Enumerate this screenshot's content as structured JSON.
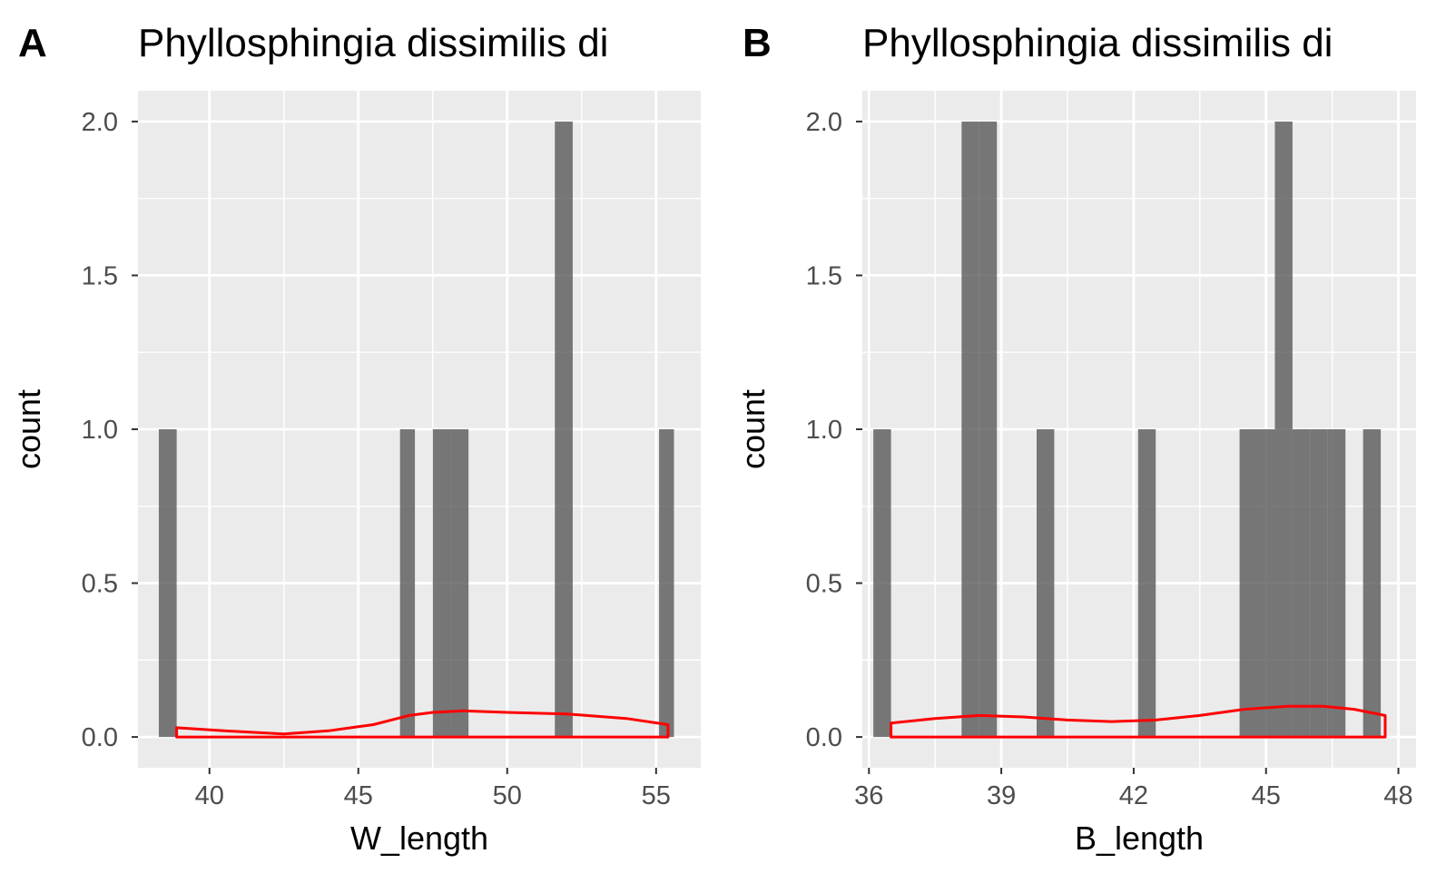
{
  "chart_data": [
    {
      "panel_tag": "A",
      "type": "bar",
      "title": "Phyllosphingia dissimilis di",
      "xlabel": "W_length",
      "ylabel": "count",
      "xlim": [
        37.6,
        56.5
      ],
      "ylim": [
        -0.1,
        2.1
      ],
      "xticks": [
        40,
        45,
        50,
        55
      ],
      "xtick_labels": [
        "40",
        "45",
        "50",
        "55"
      ],
      "yticks": [
        0,
        0.5,
        1,
        1.5,
        2
      ],
      "ytick_labels": [
        "0.0",
        "0.5",
        "1.0",
        "1.5",
        "2.0"
      ],
      "grid": true,
      "bins": [
        {
          "x0": 38.3,
          "x1": 38.9,
          "count": 1
        },
        {
          "x0": 46.4,
          "x1": 46.9,
          "count": 1
        },
        {
          "x0": 47.5,
          "x1": 48.1,
          "count": 1
        },
        {
          "x0": 48.1,
          "x1": 48.7,
          "count": 1
        },
        {
          "x0": 51.6,
          "x1": 52.2,
          "count": 2
        },
        {
          "x0": 55.1,
          "x1": 55.6,
          "count": 1
        }
      ],
      "density_outline": {
        "color": "#ff0000",
        "points": [
          [
            38.9,
            0.03
          ],
          [
            40.5,
            0.02
          ],
          [
            42.5,
            0.01
          ],
          [
            44.0,
            0.02
          ],
          [
            45.5,
            0.04
          ],
          [
            46.7,
            0.07
          ],
          [
            47.5,
            0.08
          ],
          [
            48.5,
            0.085
          ],
          [
            50.0,
            0.08
          ],
          [
            52.0,
            0.075
          ],
          [
            54.0,
            0.06
          ],
          [
            55.4,
            0.04
          ]
        ]
      }
    },
    {
      "panel_tag": "B",
      "type": "bar",
      "title": "Phyllosphingia dissimilis di",
      "xlabel": "B_length",
      "ylabel": "count",
      "xlim": [
        35.85,
        48.4
      ],
      "ylim": [
        -0.1,
        2.1
      ],
      "xticks": [
        36,
        39,
        42,
        45,
        48
      ],
      "xtick_labels": [
        "36",
        "39",
        "42",
        "45",
        "48"
      ],
      "yticks": [
        0,
        0.5,
        1,
        1.5,
        2
      ],
      "ytick_labels": [
        "0.0",
        "0.5",
        "1.0",
        "1.5",
        "2.0"
      ],
      "grid": true,
      "bins": [
        {
          "x0": 36.1,
          "x1": 36.5,
          "count": 1
        },
        {
          "x0": 38.1,
          "x1": 38.5,
          "count": 2
        },
        {
          "x0": 38.5,
          "x1": 38.9,
          "count": 2
        },
        {
          "x0": 39.8,
          "x1": 40.2,
          "count": 1
        },
        {
          "x0": 42.1,
          "x1": 42.5,
          "count": 1
        },
        {
          "x0": 44.4,
          "x1": 44.8,
          "count": 1
        },
        {
          "x0": 44.8,
          "x1": 45.2,
          "count": 1
        },
        {
          "x0": 45.2,
          "x1": 45.6,
          "count": 2
        },
        {
          "x0": 45.6,
          "x1": 46.0,
          "count": 1
        },
        {
          "x0": 46.0,
          "x1": 46.4,
          "count": 1
        },
        {
          "x0": 46.4,
          "x1": 46.8,
          "count": 1
        },
        {
          "x0": 47.2,
          "x1": 47.6,
          "count": 1
        }
      ],
      "density_outline": {
        "color": "#ff0000",
        "points": [
          [
            36.5,
            0.045
          ],
          [
            37.5,
            0.06
          ],
          [
            38.5,
            0.07
          ],
          [
            39.5,
            0.065
          ],
          [
            40.5,
            0.055
          ],
          [
            41.5,
            0.05
          ],
          [
            42.5,
            0.055
          ],
          [
            43.5,
            0.07
          ],
          [
            44.5,
            0.09
          ],
          [
            45.5,
            0.1
          ],
          [
            46.3,
            0.1
          ],
          [
            47.0,
            0.09
          ],
          [
            47.7,
            0.07
          ]
        ]
      }
    }
  ]
}
